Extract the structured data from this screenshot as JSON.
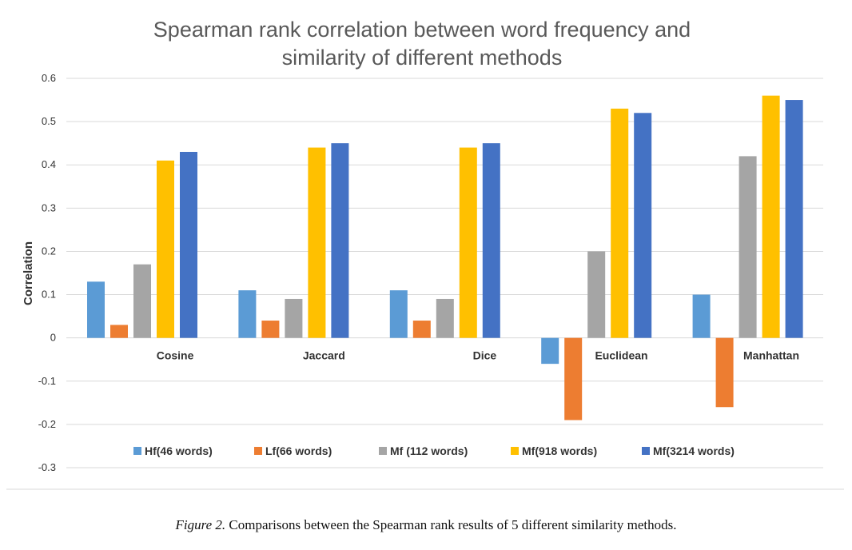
{
  "chart_data": {
    "type": "bar",
    "title_lines": [
      "Spearman rank correlation between word frequency and",
      "similarity of different methods"
    ],
    "ylabel": "Correlation",
    "xlabel": "",
    "ylim": [
      -0.3,
      0.6
    ],
    "yticks": [
      "0.6",
      "0.5",
      "0.4",
      "0.3",
      "0.2",
      "0.1",
      "0",
      "-0.1",
      "-0.2",
      "-0.3"
    ],
    "grid": true,
    "legend_position": "bottom",
    "categories": [
      "Cosine",
      "Jaccard",
      "Dice",
      "Euclidean",
      "Manhattan"
    ],
    "series": [
      {
        "name": "Hf(46 words)",
        "color": "#5B9BD5",
        "values": [
          0.13,
          0.11,
          0.11,
          -0.06,
          0.1
        ]
      },
      {
        "name": "Lf(66 words)",
        "color": "#ED7D31",
        "values": [
          0.03,
          0.04,
          0.04,
          -0.19,
          -0.16
        ]
      },
      {
        "name": "Mf (112 words)",
        "color": "#A5A5A5",
        "values": [
          0.17,
          0.09,
          0.09,
          0.2,
          0.42
        ]
      },
      {
        "name": "Mf(918 words)",
        "color": "#FFC000",
        "values": [
          0.41,
          0.44,
          0.44,
          0.53,
          0.56
        ]
      },
      {
        "name": "Mf(3214 words)",
        "color": "#4472C4",
        "values": [
          0.43,
          0.45,
          0.45,
          0.52,
          0.55
        ]
      }
    ]
  },
  "caption": {
    "label": "Figure 2.",
    "text": " Comparisons between the Spearman rank results of 5 different similarity methods."
  }
}
